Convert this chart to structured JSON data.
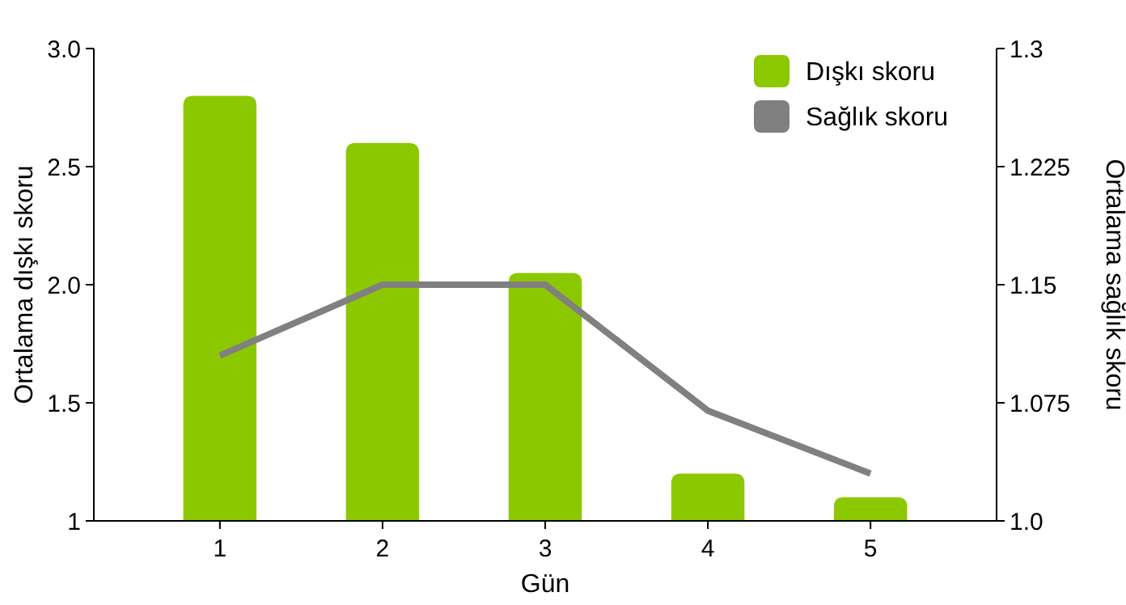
{
  "chart_data": {
    "type": "bar",
    "xlabel": "Gün",
    "ylabel": "Ortalama dışkı skoru",
    "y2label": "Ortalama sağlık skoru",
    "categories": [
      "1",
      "2",
      "3",
      "4",
      "5"
    ],
    "series": [
      {
        "name": "Dışkı skoru",
        "color": "#8cc800",
        "values": [
          2.8,
          2.6,
          2.05,
          1.2,
          1.1
        ]
      },
      {
        "name": "Sağlık skoru",
        "type": "line",
        "axis": "y2",
        "color": "#808080",
        "values": [
          1.105,
          1.15,
          1.15,
          1.07,
          1.03
        ]
      }
    ],
    "ylim": [
      1,
      3
    ],
    "yticks": [
      {
        "value": 1,
        "label": "1"
      },
      1.5,
      {
        "value": 2,
        "label": "2.0"
      },
      2.5,
      {
        "value": 3,
        "label": "3.0"
      }
    ],
    "y2lim": [
      1,
      1.3
    ],
    "y2ticks": [
      {
        "value": 1,
        "label": "1.0"
      },
      1.075,
      1.15,
      1.225,
      1.3
    ],
    "grid": false,
    "legend": "top right",
    "marker": "none",
    "line_style": "solid"
  }
}
